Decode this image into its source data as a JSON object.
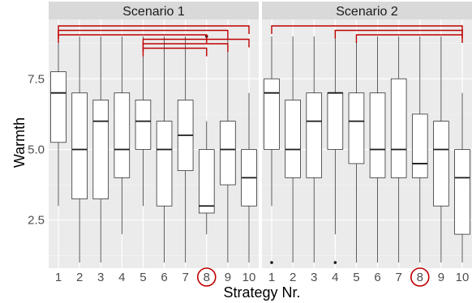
{
  "chart_data": {
    "type": "box",
    "xlabel": "Strategy Nr.",
    "ylabel": "Warmth",
    "ylim": [
      0.8,
      9.6
    ],
    "y_ticks": [
      2.5,
      5.0,
      7.5
    ],
    "y_tick_labels": [
      "2.5",
      "5.0",
      "7.5"
    ],
    "categories": [
      "1",
      "2",
      "3",
      "4",
      "5",
      "6",
      "7",
      "8",
      "9",
      "10"
    ],
    "highlighted_category": "8",
    "grid": true,
    "colors": {
      "panel_bg": "#ebebeb",
      "grid_major": "#ffffff",
      "strip_bg": "#d9d9d9",
      "box_fill": "#ffffff",
      "box_line": "#333333",
      "highlight": "#c00000"
    },
    "panels": [
      {
        "title": "Scenario 1",
        "boxes": [
          {
            "category": "1",
            "lower_whisker": 3,
            "q1": 5.25,
            "median": 7,
            "q3": 7.75,
            "upper_whisker": 9,
            "outliers": []
          },
          {
            "category": "2",
            "lower_whisker": 1,
            "q1": 3.25,
            "median": 5,
            "q3": 7,
            "upper_whisker": 9,
            "outliers": []
          },
          {
            "category": "3",
            "lower_whisker": 1,
            "q1": 3.25,
            "median": 6,
            "q3": 6.75,
            "upper_whisker": 9,
            "outliers": []
          },
          {
            "category": "4",
            "lower_whisker": 2,
            "q1": 4,
            "median": 5,
            "q3": 7,
            "upper_whisker": 9,
            "outliers": []
          },
          {
            "category": "5",
            "lower_whisker": 3,
            "q1": 5,
            "median": 6,
            "q3": 6.75,
            "upper_whisker": 9,
            "outliers": []
          },
          {
            "category": "6",
            "lower_whisker": 1,
            "q1": 3,
            "median": 5,
            "q3": 6,
            "upper_whisker": 9,
            "outliers": []
          },
          {
            "category": "7",
            "lower_whisker": 1,
            "q1": 4.25,
            "median": 5.5,
            "q3": 6.75,
            "upper_whisker": 9,
            "outliers": []
          },
          {
            "category": "8",
            "lower_whisker": 2,
            "q1": 2.75,
            "median": 3,
            "q3": 5,
            "upper_whisker": 6,
            "outliers": [
              9
            ]
          },
          {
            "category": "9",
            "lower_whisker": 1,
            "q1": 3.75,
            "median": 5,
            "q3": 6,
            "upper_whisker": 9,
            "outliers": []
          },
          {
            "category": "10",
            "lower_whisker": 1,
            "q1": 3,
            "median": 4,
            "q3": 5,
            "upper_whisker": 7,
            "outliers": []
          }
        ],
        "brackets": [
          {
            "from": "1",
            "to": "10"
          },
          {
            "from": "1",
            "to": "9"
          },
          {
            "from": "1",
            "to": "8"
          },
          {
            "from": "5",
            "to": "10"
          },
          {
            "from": "5",
            "to": "9"
          },
          {
            "from": "5",
            "to": "8"
          }
        ]
      },
      {
        "title": "Scenario 2",
        "boxes": [
          {
            "category": "1",
            "lower_whisker": 3,
            "q1": 5,
            "median": 7,
            "q3": 7.5,
            "upper_whisker": 9,
            "outliers": [
              1
            ]
          },
          {
            "category": "2",
            "lower_whisker": 1,
            "q1": 4,
            "median": 5,
            "q3": 6.75,
            "upper_whisker": 9,
            "outliers": []
          },
          {
            "category": "3",
            "lower_whisker": 1,
            "q1": 4,
            "median": 6,
            "q3": 7,
            "upper_whisker": 9,
            "outliers": []
          },
          {
            "category": "4",
            "lower_whisker": 2,
            "q1": 5,
            "median": 7,
            "q3": 7,
            "upper_whisker": 9,
            "outliers": [
              1
            ]
          },
          {
            "category": "5",
            "lower_whisker": 1,
            "q1": 4.5,
            "median": 6,
            "q3": 7,
            "upper_whisker": 9,
            "outliers": []
          },
          {
            "category": "6",
            "lower_whisker": 1,
            "q1": 4,
            "median": 5,
            "q3": 7,
            "upper_whisker": 9,
            "outliers": []
          },
          {
            "category": "7",
            "lower_whisker": 1,
            "q1": 4,
            "median": 5,
            "q3": 7.5,
            "upper_whisker": 9,
            "outliers": []
          },
          {
            "category": "8",
            "lower_whisker": 1,
            "q1": 4,
            "median": 4.5,
            "q3": 6.25,
            "upper_whisker": 9,
            "outliers": []
          },
          {
            "category": "9",
            "lower_whisker": 1,
            "q1": 3,
            "median": 5,
            "q3": 6,
            "upper_whisker": 9,
            "outliers": []
          },
          {
            "category": "10",
            "lower_whisker": 1,
            "q1": 2,
            "median": 4,
            "q3": 5,
            "upper_whisker": 7,
            "outliers": []
          }
        ],
        "brackets": [
          {
            "from": "1",
            "to": "10"
          },
          {
            "from": "4",
            "to": "10"
          },
          {
            "from": "5",
            "to": "10"
          }
        ]
      }
    ]
  }
}
